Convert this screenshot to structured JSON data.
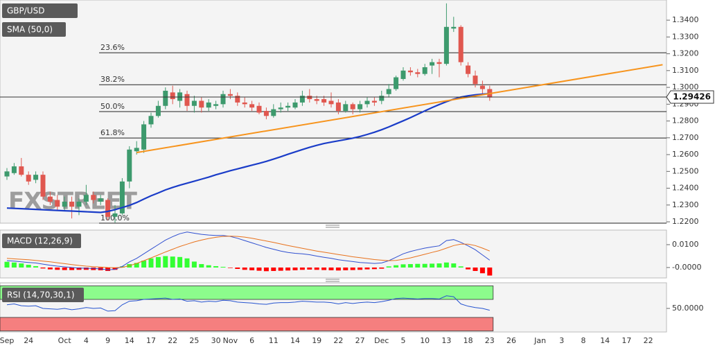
{
  "chart_data": [
    {
      "type": "candlestick",
      "symbol": "GBP/USD",
      "watermark": "FXSTREET",
      "categories": [
        "Sep",
        null,
        null,
        "24",
        null,
        null,
        null,
        null,
        "Oct",
        null,
        null,
        "4",
        null,
        null,
        "9",
        null,
        null,
        "14",
        null,
        null,
        "17",
        null,
        null,
        "22",
        null,
        null,
        "25",
        null,
        null,
        "30",
        null,
        "Nov",
        null,
        null,
        "6",
        null,
        null,
        "11",
        null,
        null,
        "14",
        null,
        null,
        "19",
        null,
        null,
        "22",
        null,
        null,
        "27",
        null,
        null,
        "Dec",
        null,
        null,
        "5",
        null,
        null,
        "10",
        null,
        null,
        "13",
        null,
        null,
        "18",
        null,
        null,
        "23",
        null,
        null,
        "26",
        null,
        null,
        null,
        "Jan",
        null,
        null,
        "3",
        null,
        null,
        "8",
        null,
        null,
        "14",
        null,
        null,
        "17",
        null,
        null,
        "22",
        null,
        null
      ],
      "open": [
        1.247,
        1.249,
        1.253,
        1.248,
        1.245,
        1.248,
        1.235,
        1.233,
        1.229,
        1.232,
        1.229,
        1.232,
        1.236,
        1.232,
        1.233,
        1.223,
        1.225,
        1.244,
        1.262,
        1.263,
        1.278,
        1.283,
        1.289,
        1.297,
        1.292,
        1.296,
        1.289,
        1.292,
        1.288,
        1.289,
        1.29,
        1.296,
        1.295,
        1.291,
        1.29,
        1.289,
        1.286,
        1.283,
        1.287,
        1.288,
        1.288,
        1.291,
        1.295,
        1.293,
        1.293,
        1.292,
        1.291,
        1.286,
        1.29,
        1.287,
        1.29,
        1.292,
        1.292,
        1.296,
        1.299,
        1.305,
        1.31,
        1.309,
        1.308,
        1.313,
        1.315,
        1.314,
        1.335,
        1.336,
        1.313,
        1.307,
        1.301,
        1.299,
        null,
        null,
        null,
        null,
        null,
        null,
        null,
        null,
        null,
        null,
        null,
        null,
        null,
        null,
        null,
        null,
        null,
        null,
        null,
        null,
        null,
        null,
        null,
        null
      ],
      "high": [
        1.252,
        1.255,
        1.258,
        1.25,
        1.25,
        1.25,
        1.238,
        1.236,
        1.235,
        1.235,
        1.234,
        1.242,
        1.238,
        1.236,
        1.234,
        1.23,
        1.246,
        1.265,
        1.268,
        1.28,
        1.285,
        1.292,
        1.3,
        1.301,
        1.299,
        1.298,
        1.295,
        1.294,
        1.293,
        1.292,
        1.298,
        1.299,
        1.297,
        1.294,
        1.292,
        1.291,
        1.288,
        1.29,
        1.291,
        1.291,
        1.293,
        1.298,
        1.299,
        1.295,
        1.295,
        1.297,
        1.293,
        1.292,
        1.291,
        1.292,
        1.294,
        1.294,
        1.298,
        1.302,
        1.307,
        1.312,
        1.312,
        1.311,
        1.314,
        1.317,
        1.317,
        1.35,
        1.342,
        1.337,
        1.315,
        1.31,
        1.304,
        1.301,
        null,
        null,
        null,
        null,
        null,
        null,
        null,
        null,
        null,
        null,
        null,
        null,
        null,
        null,
        null,
        null,
        null,
        null,
        null,
        null,
        null,
        null,
        null,
        null
      ],
      "low": [
        1.245,
        1.248,
        1.247,
        1.242,
        1.243,
        1.233,
        1.23,
        1.227,
        1.227,
        1.222,
        1.224,
        1.23,
        1.231,
        1.23,
        1.221,
        1.2195,
        1.224,
        1.24,
        1.26,
        1.261,
        1.276,
        1.282,
        1.287,
        1.29,
        1.288,
        1.286,
        1.285,
        1.285,
        1.286,
        1.287,
        1.288,
        1.293,
        1.289,
        1.288,
        1.286,
        1.284,
        1.281,
        1.282,
        1.285,
        1.286,
        1.287,
        1.289,
        1.291,
        1.29,
        1.289,
        1.288,
        1.284,
        1.285,
        1.284,
        1.285,
        1.288,
        1.289,
        1.29,
        1.294,
        1.298,
        1.304,
        1.307,
        1.306,
        1.307,
        1.308,
        1.306,
        1.313,
        1.333,
        1.313,
        1.306,
        1.3,
        1.296,
        1.292,
        null,
        null,
        null,
        null,
        null,
        null,
        null,
        null,
        null,
        null,
        null,
        null,
        null,
        null,
        null,
        null,
        null,
        null,
        null,
        null,
        null,
        null,
        null,
        null
      ],
      "close": [
        1.25,
        1.253,
        1.248,
        1.244,
        1.248,
        1.235,
        1.232,
        1.229,
        1.232,
        1.229,
        1.232,
        1.236,
        1.233,
        1.234,
        1.223,
        1.225,
        1.244,
        1.263,
        1.264,
        1.278,
        1.283,
        1.289,
        1.298,
        1.293,
        1.297,
        1.289,
        1.292,
        1.288,
        1.291,
        1.29,
        1.296,
        1.295,
        1.291,
        1.29,
        1.288,
        1.285,
        1.283,
        1.287,
        1.288,
        1.289,
        1.291,
        1.295,
        1.293,
        1.292,
        1.291,
        1.29,
        1.286,
        1.29,
        1.287,
        1.29,
        1.292,
        1.291,
        1.295,
        1.299,
        1.306,
        1.31,
        1.309,
        1.308,
        1.312,
        1.315,
        1.314,
        1.336,
        1.336,
        1.315,
        1.308,
        1.302,
        1.299,
        1.294,
        null,
        null,
        null,
        null,
        null,
        null,
        null,
        null,
        null,
        null,
        null,
        null,
        null,
        null,
        null,
        null,
        null,
        null,
        null,
        null,
        null,
        null,
        null,
        null
      ],
      "up_color": "#3d9a6d",
      "down_color": "#e0574f",
      "series": [
        {
          "name": "SMA (50,0)",
          "color": "#1a3cc8",
          "values": [
            1.2282,
            1.228,
            1.2278,
            1.2276,
            1.2274,
            1.2272,
            1.227,
            1.2268,
            1.2266,
            1.2264,
            1.2262,
            1.226,
            1.2258,
            1.2256,
            1.2262,
            1.2272,
            1.2285,
            1.2298,
            1.2315,
            1.2335,
            1.2355,
            1.2372,
            1.239,
            1.2405,
            1.2418,
            1.243,
            1.2442,
            1.2454,
            1.2466,
            1.248,
            1.2492,
            1.2504,
            1.2515,
            1.2526,
            1.2537,
            1.2548,
            1.256,
            1.2573,
            1.2587,
            1.2602,
            1.2616,
            1.263,
            1.2643,
            1.2655,
            1.2666,
            1.2674,
            1.2682,
            1.269,
            1.2698,
            1.2708,
            1.272,
            1.2733,
            1.2748,
            1.2765,
            1.2783,
            1.2801,
            1.282,
            1.284,
            1.286,
            1.288,
            1.2898,
            1.2915,
            1.293,
            1.2942,
            1.295,
            1.2956,
            1.296,
            1.2963,
            null,
            null,
            null,
            null,
            null,
            null,
            null,
            null,
            null,
            null,
            null,
            null,
            null,
            null,
            null,
            null,
            null,
            null,
            null,
            null,
            null,
            null,
            null,
            null
          ]
        }
      ],
      "trendline": {
        "color": "#f7941d",
        "x": [
          18,
          91
        ],
        "values": [
          1.2612,
          1.3135
        ]
      },
      "levels": [
        {
          "label": "23.6%",
          "value": 1.3206
        },
        {
          "label": "38.2%",
          "value": 1.3016
        },
        {
          "label": "50.0%",
          "value": 1.2856
        },
        {
          "label": "61.8%",
          "value": 1.2699
        },
        {
          "label": "100.0%",
          "value": 1.2192
        }
      ],
      "last_price": 1.29426,
      "ylim": [
        1.2192,
        1.352
      ],
      "yticks": [
        {
          "value": 1.34,
          "label": "1.3400"
        },
        {
          "value": 1.33,
          "label": "1.3300"
        },
        {
          "value": 1.32,
          "label": "1.3200"
        },
        {
          "value": 1.31,
          "label": "1.3100"
        },
        {
          "value": 1.3,
          "label": "1.3000"
        },
        {
          "value": 1.29,
          "label": "1.2900"
        },
        {
          "value": 1.28,
          "label": "1.2800"
        },
        {
          "value": 1.27,
          "label": "1.2700"
        },
        {
          "value": 1.26,
          "label": "1.2600"
        },
        {
          "value": 1.25,
          "label": "1.2500"
        },
        {
          "value": 1.24,
          "label": "1.2400"
        },
        {
          "value": 1.23,
          "label": "1.2300"
        },
        {
          "value": 1.22,
          "label": "1.2200"
        }
      ]
    },
    {
      "type": "macd",
      "title": "MACD (12,26,9)",
      "ylim": [
        -0.00424,
        0.01606
      ],
      "yticks": [
        {
          "value": 0.01,
          "label": "0.0100"
        },
        {
          "value": 0,
          "label": "-0.0000"
        }
      ],
      "histogram": {
        "up_color": "#33ff33",
        "down_color": "#ff0000",
        "values": [
          0.0025,
          0.0022,
          0.0018,
          0.0012,
          0.0006,
          -0.0004,
          -0.0008,
          -0.001,
          -0.0011,
          -0.0011,
          -0.001,
          -0.001,
          -0.0011,
          -0.0012,
          -0.0015,
          -0.001,
          0.0005,
          0.0015,
          0.002,
          0.003,
          0.004,
          0.0046,
          0.005,
          0.0048,
          0.0046,
          0.004,
          0.0026,
          0.0015,
          0.001,
          0.0006,
          0.0003,
          -0.0002,
          -0.0006,
          -0.001,
          -0.0012,
          -0.0014,
          -0.0016,
          -0.0015,
          -0.0014,
          -0.0013,
          -0.0012,
          -0.001,
          -0.0009,
          -0.001,
          -0.0011,
          -0.0012,
          -0.0013,
          -0.0012,
          -0.0011,
          -0.001,
          -0.0008,
          -0.0007,
          -0.0005,
          0.0005,
          0.001,
          0.0014,
          0.0015,
          0.0016,
          0.0016,
          0.0017,
          0.0018,
          0.0022,
          0.0018,
          0.0005,
          -0.0008,
          -0.0015,
          -0.0025,
          -0.0035
        ]
      },
      "series": [
        {
          "color": "#2f4fd0",
          "values": [
            0.003,
            0.0028,
            0.0025,
            0.0022,
            0.002,
            0.0015,
            0.001,
            0.0006,
            0.0003,
            0.0,
            -0.0002,
            -0.0003,
            -0.0004,
            -0.0006,
            -0.001,
            -0.0008,
            0.0005,
            0.0025,
            0.004,
            0.006,
            0.008,
            0.01,
            0.012,
            0.0135,
            0.0148,
            0.0155,
            0.015,
            0.0145,
            0.0142,
            0.014,
            0.014,
            0.0136,
            0.0128,
            0.0118,
            0.0108,
            0.0098,
            0.0088,
            0.008,
            0.0072,
            0.0066,
            0.0062,
            0.006,
            0.0056,
            0.005,
            0.0045,
            0.004,
            0.0034,
            0.003,
            0.0026,
            0.0022,
            0.002,
            0.0018,
            0.002,
            0.003,
            0.0045,
            0.006,
            0.007,
            0.0078,
            0.0085,
            0.009,
            0.0095,
            0.0118,
            0.0122,
            0.011,
            0.0095,
            0.0078,
            0.0055,
            0.0032
          ]
        },
        {
          "color": "#e8711b",
          "values": [
            0.004,
            0.0038,
            0.0036,
            0.0034,
            0.0031,
            0.0028,
            0.0025,
            0.0021,
            0.0017,
            0.0013,
            0.0009,
            0.0006,
            0.0004,
            0.0002,
            0.0,
            -0.0001,
            0.0001,
            0.0008,
            0.0018,
            0.003,
            0.0042,
            0.0055,
            0.0068,
            0.008,
            0.0092,
            0.0102,
            0.0112,
            0.012,
            0.0127,
            0.0132,
            0.0136,
            0.0137,
            0.0136,
            0.0133,
            0.0128,
            0.0122,
            0.0116,
            0.011,
            0.0103,
            0.0096,
            0.009,
            0.0084,
            0.0078,
            0.0072,
            0.0067,
            0.0062,
            0.0057,
            0.0052,
            0.0047,
            0.0043,
            0.0039,
            0.0035,
            0.0032,
            0.003,
            0.0031,
            0.0036,
            0.0042,
            0.005,
            0.0058,
            0.0066,
            0.0074,
            0.0085,
            0.0096,
            0.0102,
            0.0102,
            0.0096,
            0.0085,
            0.0072
          ]
        }
      ]
    },
    {
      "type": "rsi",
      "title": "RSI (14,70,30,1)",
      "ylim": [
        0,
        100
      ],
      "yticks": [
        {
          "value": 50,
          "label": "50.0000"
        }
      ],
      "bands": [
        {
          "from": 70,
          "to": 100,
          "color": "#8cfc8c"
        },
        {
          "from": 0,
          "to": 30,
          "color": "#f57f7f"
        }
      ],
      "series": [
        {
          "color": "#2553d0",
          "values": [
            58,
            60,
            56,
            55,
            56,
            50,
            49,
            48,
            50,
            47,
            49,
            52,
            50,
            51,
            44,
            45,
            58,
            66,
            67,
            70,
            71,
            72,
            73,
            70,
            71,
            66,
            67,
            64,
            66,
            65,
            68,
            67,
            64,
            63,
            62,
            60,
            59,
            62,
            63,
            63,
            64,
            66,
            65,
            64,
            64,
            63,
            60,
            63,
            61,
            63,
            64,
            63,
            65,
            68,
            72,
            73,
            72,
            71,
            72,
            72,
            71,
            78,
            76,
            60,
            55,
            52,
            50,
            46
          ]
        }
      ]
    }
  ]
}
